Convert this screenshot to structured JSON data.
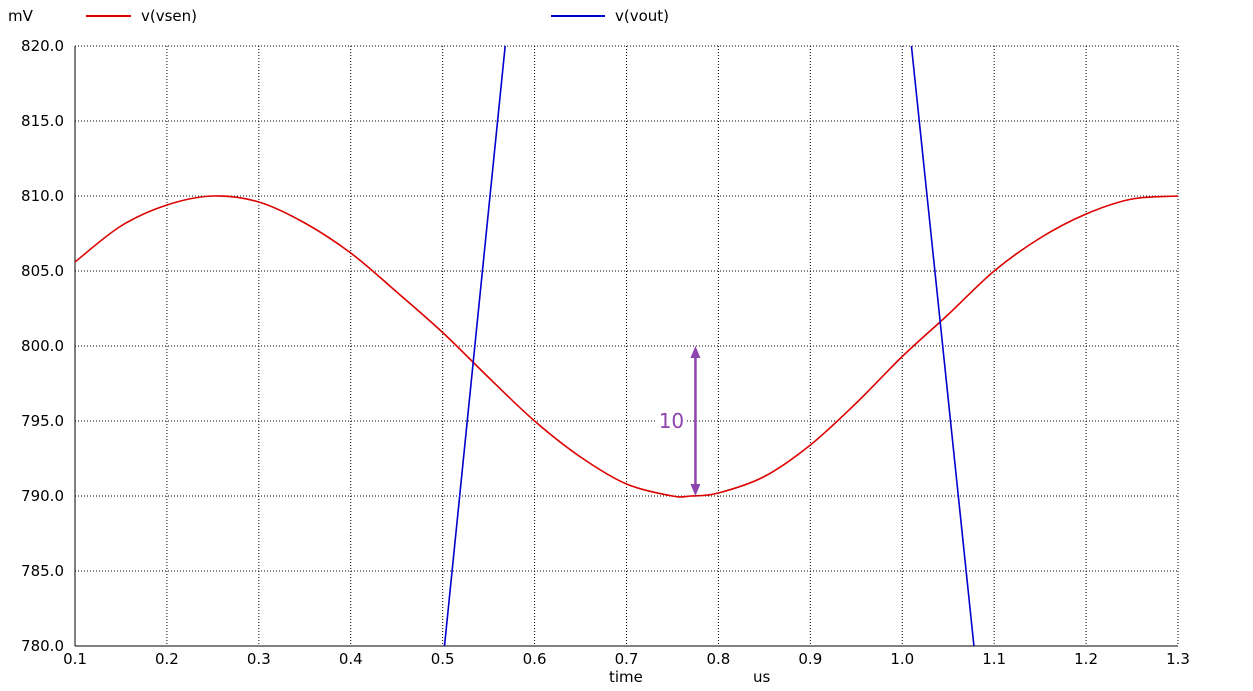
{
  "chart_data": {
    "type": "line",
    "y_unit": "mV",
    "x_label": "time",
    "x_unit": "us",
    "xlim": [
      0.1,
      1.3
    ],
    "ylim": [
      780.0,
      820.0
    ],
    "x_ticks": [
      "0.1",
      "0.2",
      "0.3",
      "0.4",
      "0.5",
      "0.6",
      "0.7",
      "0.8",
      "0.9",
      "1.0",
      "1.1",
      "1.2",
      "1.3"
    ],
    "y_ticks": [
      "820.0",
      "815.0",
      "810.0",
      "805.0",
      "800.0",
      "795.0",
      "790.0",
      "785.0",
      "780.0"
    ],
    "grid": true,
    "legend_position": "top",
    "series": [
      {
        "name": "v(vsen)",
        "color": "#dd0000",
        "x": [
          0.1,
          0.15,
          0.2,
          0.25,
          0.3,
          0.35,
          0.4,
          0.45,
          0.5,
          0.55,
          0.6,
          0.65,
          0.7,
          0.75,
          0.77,
          0.8,
          0.85,
          0.9,
          0.95,
          1.0,
          1.05,
          1.1,
          1.15,
          1.2,
          1.25,
          1.3
        ],
        "y": [
          805.6,
          808.0,
          809.4,
          810.0,
          809.6,
          808.2,
          806.2,
          803.6,
          800.9,
          797.9,
          795.0,
          792.6,
          790.8,
          790.0,
          790.0,
          790.2,
          791.3,
          793.4,
          796.2,
          799.3,
          802.1,
          805.0,
          807.2,
          808.8,
          809.8,
          810.0
        ]
      },
      {
        "name": "v(vout)",
        "color": "#0000cc",
        "segments": [
          {
            "x": [
              0.502,
              0.568
            ],
            "y": [
              780.0,
              820.0
            ]
          },
          {
            "x": [
              1.01,
              1.078
            ],
            "y": [
              820.0,
              780.0
            ]
          }
        ]
      }
    ],
    "annotations": [
      {
        "type": "double-arrow",
        "x": 0.775,
        "y1": 790.0,
        "y2": 800.0,
        "label": "10",
        "color": "#8e44ad"
      }
    ]
  }
}
